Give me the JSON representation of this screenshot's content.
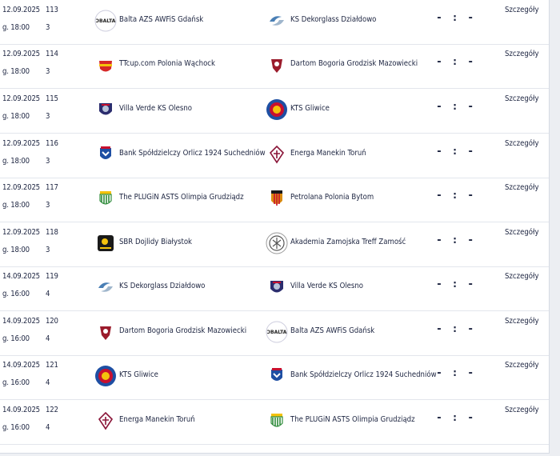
{
  "details_label": "Szczegóły",
  "score_placeholder": "- : -",
  "teams": {
    "balta": "Balta AZS AWFiS Gdańsk",
    "dekorglass": "KS Dekorglass Działdowo",
    "polonia_wachock": "TTcup.com Polonia Wąchock",
    "dartom": "Dartom Bogoria Grodzisk Mazowiecki",
    "villa_verde": "Villa Verde KS Olesno",
    "kts": "KTS Gliwice",
    "orlicz": "Bank Spółdzielczy Orlicz 1924 Suchedniów",
    "energa": "Energa Manekin Toruń",
    "plugin": "The PLUGiN ASTS Olimpia Grudziądz",
    "petrolana": "Petrolana Polonia Bytom",
    "sbr": "SBR Dojlidy Białystok",
    "akademia": "Akademia Zamojska Treff Zamość"
  },
  "matches": [
    {
      "date": "12.09.2025",
      "time": "g. 18:00",
      "number": "113",
      "round": "3",
      "home": "Balta AZS AWFiS Gdańsk",
      "away": "KS Dekorglass Działdowo"
    },
    {
      "date": "12.09.2025",
      "time": "g. 18:00",
      "number": "114",
      "round": "3",
      "home": "TTcup.com Polonia Wąchock",
      "away": "Dartom Bogoria Grodzisk Mazowiecki"
    },
    {
      "date": "12.09.2025",
      "time": "g. 18:00",
      "number": "115",
      "round": "3",
      "home": "Villa Verde KS Olesno",
      "away": "KTS Gliwice"
    },
    {
      "date": "12.09.2025",
      "time": "g. 18:00",
      "number": "116",
      "round": "3",
      "home": "Bank Spółdzielczy Orlicz 1924 Suchedniów",
      "away": "Energa Manekin Toruń"
    },
    {
      "date": "12.09.2025",
      "time": "g. 18:00",
      "number": "117",
      "round": "3",
      "home": "The PLUGiN ASTS Olimpia Grudziądz",
      "away": "Petrolana Polonia Bytom"
    },
    {
      "date": "12.09.2025",
      "time": "g. 18:00",
      "number": "118",
      "round": "3",
      "home": "SBR Dojlidy Białystok",
      "away": "Akademia Zamojska Treff Zamość"
    },
    {
      "date": "14.09.2025",
      "time": "g. 16:00",
      "number": "119",
      "round": "4",
      "home": "KS Dekorglass Działdowo",
      "away": "Villa Verde KS Olesno"
    },
    {
      "date": "14.09.2025",
      "time": "g. 16:00",
      "number": "120",
      "round": "4",
      "home": "Dartom Bogoria Grodzisk Mazowiecki",
      "away": "Balta AZS AWFiS Gdańsk"
    },
    {
      "date": "14.09.2025",
      "time": "g. 16:00",
      "number": "121",
      "round": "4",
      "home": "KTS Gliwice",
      "away": "Bank Spółdzielczy Orlicz 1924 Suchedniów"
    },
    {
      "date": "14.09.2025",
      "time": "g. 16:00",
      "number": "122",
      "round": "4",
      "home": "Energa Manekin Toruń",
      "away": "The PLUGiN ASTS Olimpia Grudziądz"
    }
  ],
  "logos": {
    "balta": {
      "icon": "balta-logo",
      "text": "BALTA",
      "color": "#222222"
    },
    "dekorglass": {
      "icon": "dekorglass-logo",
      "color": "#4a7fb5"
    },
    "polonia_wachock": {
      "icon": "polonia-wachock-logo",
      "color": "#d62828"
    },
    "dartom": {
      "icon": "dartom-logo",
      "color": "#9b1c2c"
    },
    "villa_verde": {
      "icon": "villa-verde-logo",
      "color": "#2b2d6e"
    },
    "kts": {
      "icon": "kts-logo",
      "color": "#c8102e"
    },
    "orlicz": {
      "icon": "orlicz-logo",
      "color": "#1e4fa3"
    },
    "energa": {
      "icon": "energa-logo",
      "color": "#8a1538"
    },
    "plugin": {
      "icon": "plugin-logo",
      "color": "#2e8b3a"
    },
    "petrolana": {
      "icon": "petrolana-logo",
      "color": "#d98c10"
    },
    "sbr": {
      "icon": "sbr-logo",
      "color": "#1a1a1a"
    },
    "akademia": {
      "icon": "akademia-logo",
      "color": "#555555"
    }
  }
}
